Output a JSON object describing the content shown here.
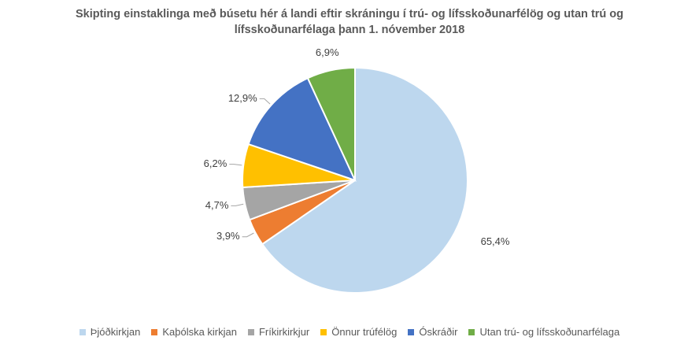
{
  "chart_data": {
    "type": "pie",
    "title_lines": [
      "Skipting einstaklinga með búsetu hér á landi eftir skráningu í trú- og lífsskoðunarfélög og utan trú og",
      "lífsskoðunarfélaga þann 1. nóvember 2018"
    ],
    "slices": [
      {
        "name": "Þjóðkirkjan",
        "value": 65.4,
        "label": "65,4%",
        "color": "#BDD7EE"
      },
      {
        "name": "Kaþólska kirkjan",
        "value": 3.9,
        "label": "3,9%",
        "color": "#ED7D31"
      },
      {
        "name": "Fríkirkirkjur",
        "value": 4.7,
        "label": "4,7%",
        "color": "#A5A5A5"
      },
      {
        "name": "Önnur trúfélög",
        "value": 6.2,
        "label": "6,2%",
        "color": "#FFC000"
      },
      {
        "name": "Óskráðir",
        "value": 12.9,
        "label": "12,9%",
        "color": "#4472C4"
      },
      {
        "name": "Utan trú- og lífsskoðunarfélaga",
        "value": 6.9,
        "label": "6,9%",
        "color": "#70AD47"
      }
    ],
    "start_angle": "12 o'clock",
    "direction": "clockwise",
    "legend_position": "bottom"
  }
}
